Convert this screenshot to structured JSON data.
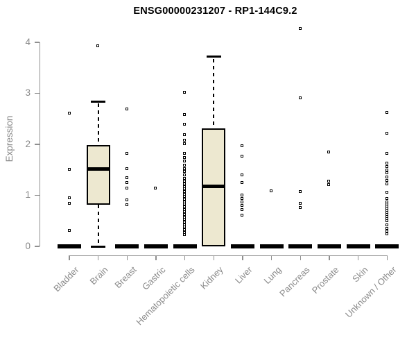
{
  "title": "ENSG00000231207 - RP1-144C9.2",
  "colors": {
    "box_fill": "#EDE8D0",
    "box_border": "#000000",
    "axis": "#8F8F8F",
    "tick_label": "#8A8A8A",
    "title_color": "#000000",
    "background": "#FFFFFF"
  },
  "chart_data": {
    "type": "boxplot",
    "title": "ENSG00000231207 - RP1-144C9.2",
    "xlabel": "",
    "ylabel": "Expression",
    "ylim": [
      0,
      4.4
    ],
    "yticks": [
      "0",
      "1",
      "2",
      "3",
      "4"
    ],
    "grid": false,
    "legend": "none",
    "categories": [
      "Bladder",
      "Brain",
      "Breast",
      "Gastric",
      "Hematopoietic cells",
      "Kidney",
      "Liver",
      "Lung",
      "Pancreas",
      "Prostate",
      "Skin",
      "Unknown / Other"
    ],
    "series": [
      {
        "category": "Bladder",
        "min": 0,
        "q1": 0,
        "median": 0,
        "q3": 0,
        "max": 0,
        "outliers": [
          2.6,
          1.5,
          0.94,
          0.83,
          0.3
        ]
      },
      {
        "category": "Brain",
        "min": 0,
        "q1": 0.82,
        "median": 1.52,
        "q3": 1.98,
        "max": 2.84,
        "outliers": [
          3.93
        ]
      },
      {
        "category": "Breast",
        "min": 0,
        "q1": 0,
        "median": 0,
        "q3": 0,
        "max": 0,
        "outliers": [
          2.69,
          1.82,
          1.52,
          1.34,
          1.25,
          1.13,
          0.9,
          0.81
        ]
      },
      {
        "category": "Gastric",
        "min": 0,
        "q1": 0,
        "median": 0,
        "q3": 0,
        "max": 0,
        "outliers": [
          1.14
        ]
      },
      {
        "category": "Hematopoietic cells",
        "min": 0,
        "q1": 0,
        "median": 0,
        "q3": 0,
        "max": 0,
        "outliers": [
          3.02,
          2.58,
          2.39,
          2.18,
          2.08,
          2.01,
          1.81,
          1.74,
          1.66,
          1.59,
          1.52,
          1.46,
          1.39,
          1.32,
          1.27,
          1.22,
          1.17,
          1.12,
          1.07,
          1.02,
          0.97,
          0.92,
          0.87,
          0.82,
          0.77,
          0.72,
          0.67,
          0.62,
          0.57,
          0.52,
          0.47,
          0.42,
          0.37,
          0.32,
          0.27,
          0.22
        ]
      },
      {
        "category": "Kidney",
        "min": 0,
        "q1": 0,
        "median": 1.18,
        "q3": 2.31,
        "max": 3.72,
        "outliers": []
      },
      {
        "category": "Liver",
        "min": 0,
        "q1": 0,
        "median": 0,
        "q3": 0,
        "max": 0,
        "outliers": [
          1.96,
          1.76,
          1.39,
          1.24,
          1.0,
          0.93,
          0.86,
          0.79,
          0.72,
          0.6
        ]
      },
      {
        "category": "Lung",
        "min": 0,
        "q1": 0,
        "median": 0,
        "q3": 0,
        "max": 0,
        "outliers": [
          1.08
        ]
      },
      {
        "category": "Pancreas",
        "min": 0,
        "q1": 0,
        "median": 0,
        "q3": 0,
        "max": 0,
        "outliers": [
          4.27,
          2.91,
          1.07,
          0.84,
          0.75
        ]
      },
      {
        "category": "Prostate",
        "min": 0,
        "q1": 0,
        "median": 0,
        "q3": 0,
        "max": 0,
        "outliers": [
          1.84,
          1.27,
          1.2
        ]
      },
      {
        "category": "Skin",
        "min": 0,
        "q1": 0,
        "median": 0,
        "q3": 0,
        "max": 0,
        "outliers": []
      },
      {
        "category": "Unknown / Other",
        "min": 0,
        "q1": 0,
        "median": 0,
        "q3": 0,
        "max": 0,
        "outliers": [
          2.62,
          2.21,
          1.82,
          1.63,
          1.56,
          1.49,
          1.43,
          1.36,
          1.29,
          1.22,
          1.05,
          0.93,
          0.86,
          0.82,
          0.78,
          0.74,
          0.7,
          0.66,
          0.62,
          0.58,
          0.54,
          0.5,
          0.41,
          0.35,
          0.29,
          0.24
        ]
      }
    ]
  }
}
